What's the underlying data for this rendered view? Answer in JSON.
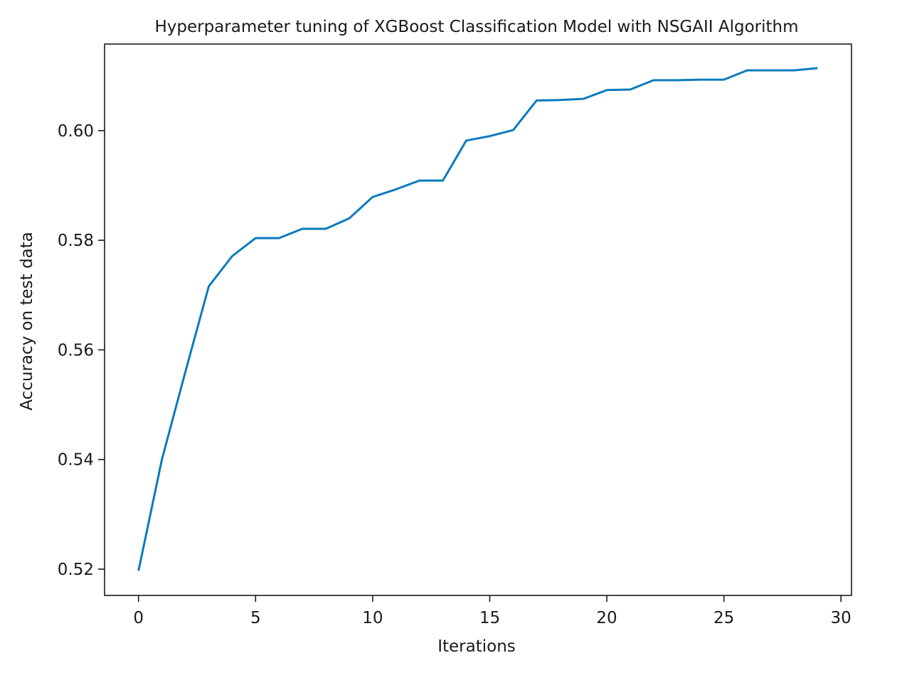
{
  "chart_data": {
    "type": "line",
    "title": "Hyperparameter tuning of XGBoost Classification Model with NSGAII Algorithm",
    "xlabel": "Iterations",
    "ylabel": "Accuracy on test data",
    "x": [
      0,
      1,
      2,
      3,
      4,
      5,
      6,
      7,
      8,
      9,
      10,
      11,
      12,
      13,
      14,
      15,
      16,
      17,
      18,
      19,
      20,
      21,
      22,
      23,
      24,
      25,
      26,
      27,
      28,
      29
    ],
    "series": [
      {
        "name": "Accuracy",
        "color": "#0b7bbd",
        "values": [
          0.5197,
          0.54,
          0.556,
          0.5716,
          0.5771,
          0.5804,
          0.5804,
          0.5821,
          0.5821,
          0.584,
          0.5879,
          0.5893,
          0.5909,
          0.5909,
          0.5982,
          0.599,
          0.6001,
          0.6055,
          0.6056,
          0.6058,
          0.6074,
          0.6075,
          0.6092,
          0.6092,
          0.6093,
          0.6093,
          0.611,
          0.611,
          0.611,
          0.6114
        ]
      }
    ],
    "xticks": [
      0,
      5,
      10,
      15,
      20,
      25,
      30
    ],
    "yticks": [
      0.52,
      0.54,
      0.56,
      0.58,
      0.6
    ],
    "ytick_labels": [
      "0.52",
      "0.54",
      "0.56",
      "0.58",
      "0.60"
    ],
    "xlim": [
      -1.45,
      30.45
    ],
    "ylim": [
      0.5152,
      0.6158
    ],
    "grid": false,
    "legend": null
  }
}
